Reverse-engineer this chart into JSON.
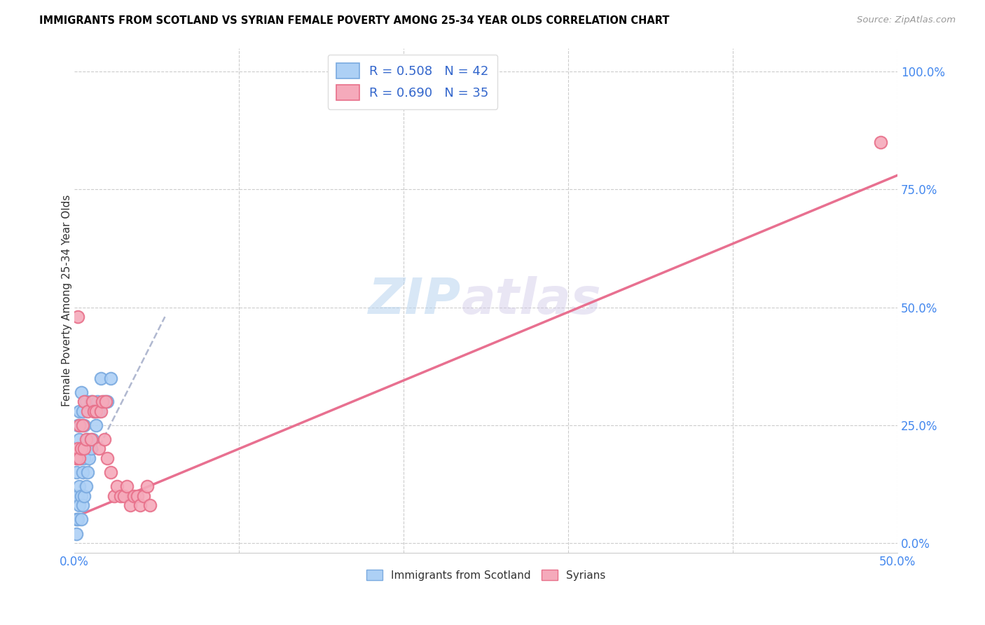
{
  "title": "IMMIGRANTS FROM SCOTLAND VS SYRIAN FEMALE POVERTY AMONG 25-34 YEAR OLDS CORRELATION CHART",
  "source": "Source: ZipAtlas.com",
  "ylabel_label": "Female Poverty Among 25-34 Year Olds",
  "xlim": [
    0,
    0.5
  ],
  "ylim": [
    -0.02,
    1.05
  ],
  "legend_label1": "R = 0.508   N = 42",
  "legend_label2": "R = 0.690   N = 35",
  "legend_bottom_label1": "Immigrants from Scotland",
  "legend_bottom_label2": "Syrians",
  "watermark_zip": "ZIP",
  "watermark_atlas": "atlas",
  "scotland_color": "#add0f5",
  "syria_color": "#f5aabb",
  "scotland_edge": "#7aaae0",
  "syria_edge": "#e8708a",
  "trendline_scotland_color": "#b0b8d0",
  "trendline_syria_color": "#e87090",
  "scotland_points_x": [
    0.001,
    0.001,
    0.001,
    0.001,
    0.002,
    0.002,
    0.002,
    0.002,
    0.003,
    0.003,
    0.003,
    0.003,
    0.003,
    0.004,
    0.004,
    0.004,
    0.004,
    0.004,
    0.005,
    0.005,
    0.005,
    0.005,
    0.006,
    0.006,
    0.006,
    0.007,
    0.007,
    0.007,
    0.008,
    0.008,
    0.009,
    0.01,
    0.01,
    0.011,
    0.012,
    0.013,
    0.014,
    0.015,
    0.016,
    0.018,
    0.02,
    0.022
  ],
  "scotland_points_y": [
    0.02,
    0.05,
    0.1,
    0.15,
    0.05,
    0.1,
    0.18,
    0.25,
    0.08,
    0.12,
    0.18,
    0.22,
    0.28,
    0.05,
    0.1,
    0.18,
    0.25,
    0.32,
    0.08,
    0.15,
    0.2,
    0.28,
    0.1,
    0.18,
    0.25,
    0.12,
    0.2,
    0.3,
    0.15,
    0.22,
    0.18,
    0.2,
    0.3,
    0.22,
    0.28,
    0.25,
    0.3,
    0.28,
    0.35,
    0.3,
    0.3,
    0.35
  ],
  "syria_points_x": [
    0.001,
    0.002,
    0.002,
    0.003,
    0.003,
    0.004,
    0.005,
    0.006,
    0.006,
    0.007,
    0.008,
    0.01,
    0.011,
    0.012,
    0.013,
    0.015,
    0.016,
    0.017,
    0.018,
    0.019,
    0.02,
    0.022,
    0.024,
    0.026,
    0.028,
    0.03,
    0.032,
    0.034,
    0.036,
    0.038,
    0.04,
    0.042,
    0.044,
    0.046,
    0.49
  ],
  "syria_points_y": [
    0.18,
    0.2,
    0.48,
    0.18,
    0.25,
    0.2,
    0.25,
    0.2,
    0.3,
    0.22,
    0.28,
    0.22,
    0.3,
    0.28,
    0.28,
    0.2,
    0.28,
    0.3,
    0.22,
    0.3,
    0.18,
    0.15,
    0.1,
    0.12,
    0.1,
    0.1,
    0.12,
    0.08,
    0.1,
    0.1,
    0.08,
    0.1,
    0.12,
    0.08,
    0.85
  ],
  "scotland_trendline_x": [
    0.0,
    0.055
  ],
  "scotland_trendline_y": [
    0.1,
    0.48
  ],
  "syria_trendline_x": [
    0.0,
    0.5
  ],
  "syria_trendline_y": [
    0.055,
    0.78
  ],
  "ytick_vals": [
    0.0,
    0.25,
    0.5,
    0.75,
    1.0
  ],
  "xtick_vals": [
    0.0,
    0.1,
    0.2,
    0.3,
    0.4,
    0.5
  ]
}
